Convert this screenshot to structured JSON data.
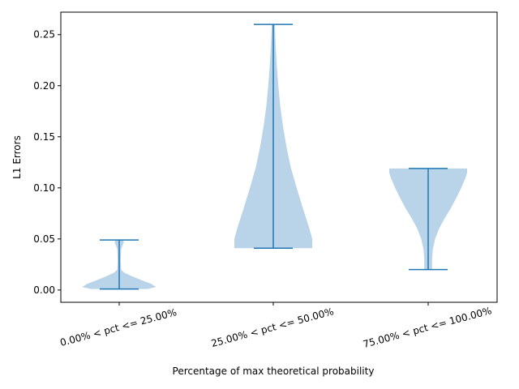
{
  "chart_data": {
    "type": "violin",
    "xlabel": "Percentage of max theoretical probability",
    "ylabel": "L1 Errors",
    "categories": [
      "0.00% < pct <= 25.00%",
      "25.00% < pct <= 50.00%",
      "75.00% < pct <= 100.00%"
    ],
    "ylim": [
      -0.012,
      0.272
    ],
    "yticks": [
      0.0,
      0.05,
      0.1,
      0.15,
      0.2,
      0.25
    ],
    "ytick_labels": [
      "0.00",
      "0.05",
      "0.10",
      "0.15",
      "0.20",
      "0.25"
    ],
    "grid": false,
    "colors": {
      "body": "#b9d3e8",
      "line": "#1f77b4"
    },
    "series": [
      {
        "min": 0.001,
        "max": 0.049,
        "profile": [
          [
            0.001,
            0.72
          ],
          [
            0.003,
            0.95
          ],
          [
            0.006,
            0.82
          ],
          [
            0.01,
            0.55
          ],
          [
            0.014,
            0.3
          ],
          [
            0.017,
            0.13
          ],
          [
            0.02,
            0.05
          ],
          [
            0.03,
            0.04
          ],
          [
            0.04,
            0.05
          ],
          [
            0.044,
            0.09
          ],
          [
            0.047,
            0.12
          ],
          [
            0.049,
            0.09
          ]
        ]
      },
      {
        "min": 0.041,
        "max": 0.26,
        "profile": [
          [
            0.041,
            1.0
          ],
          [
            0.05,
            1.0
          ],
          [
            0.06,
            0.93
          ],
          [
            0.08,
            0.76
          ],
          [
            0.1,
            0.6
          ],
          [
            0.12,
            0.45
          ],
          [
            0.14,
            0.34
          ],
          [
            0.16,
            0.25
          ],
          [
            0.18,
            0.18
          ],
          [
            0.2,
            0.13
          ],
          [
            0.22,
            0.09
          ],
          [
            0.24,
            0.06
          ],
          [
            0.26,
            0.04
          ]
        ]
      },
      {
        "min": 0.02,
        "max": 0.119,
        "profile": [
          [
            0.02,
            0.1
          ],
          [
            0.03,
            0.1
          ],
          [
            0.04,
            0.12
          ],
          [
            0.05,
            0.18
          ],
          [
            0.06,
            0.28
          ],
          [
            0.07,
            0.42
          ],
          [
            0.08,
            0.58
          ],
          [
            0.09,
            0.72
          ],
          [
            0.1,
            0.85
          ],
          [
            0.11,
            0.96
          ],
          [
            0.115,
            1.0
          ],
          [
            0.119,
            1.0
          ]
        ]
      }
    ]
  }
}
